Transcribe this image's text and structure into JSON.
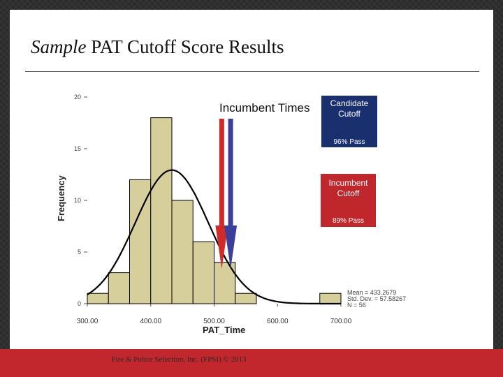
{
  "slide": {
    "title_italic": "Sample",
    "title_rest": "PAT Cutoff Score Results",
    "footer": "Fire & Police Selection, Inc. (FPSI) © 2013"
  },
  "callouts": {
    "candidate": {
      "line1": "Candidate",
      "line2": "Cutoff",
      "pass": "96% Pass",
      "color": "#1a2f6e"
    },
    "incumbent": {
      "line1": "Incumbent",
      "line2": "Cutoff",
      "pass": "89% Pass",
      "color": "#c0272d"
    }
  },
  "chart_data": {
    "type": "bar",
    "annotation_title": "Incumbent Times",
    "xlabel": "PAT_Time",
    "ylabel": "Frequency",
    "bin_width": 33.33,
    "bins": [
      {
        "x0": 300.0,
        "value": 1
      },
      {
        "x0": 333.33,
        "value": 3
      },
      {
        "x0": 366.67,
        "value": 12
      },
      {
        "x0": 400.0,
        "value": 18
      },
      {
        "x0": 433.33,
        "value": 10
      },
      {
        "x0": 466.67,
        "value": 6
      },
      {
        "x0": 500.0,
        "value": 4
      },
      {
        "x0": 533.33,
        "value": 1
      },
      {
        "x0": 566.67,
        "value": 0
      },
      {
        "x0": 600.0,
        "value": 0
      },
      {
        "x0": 633.33,
        "value": 0
      },
      {
        "x0": 666.67,
        "value": 1
      }
    ],
    "xlim": [
      300,
      700
    ],
    "ylim": [
      0,
      20
    ],
    "xticks": [
      300,
      400,
      500,
      600,
      700
    ],
    "xtick_labels": [
      "300.00",
      "400.00",
      "500.00",
      "600.00",
      "700.00"
    ],
    "yticks": [
      0,
      5,
      10,
      15,
      20
    ],
    "ytick_labels": [
      "0",
      "5",
      "10",
      "15",
      "20"
    ],
    "bar_color": "#d6cf9c",
    "normal_curve": {
      "mean": 433.2679,
      "sd": 57.58267,
      "n": 56
    },
    "stats_text": [
      "Mean = 433.2679",
      "Std. Dev. = 57.58267",
      "N = 56"
    ],
    "cutoff_lines": [
      {
        "label": "Incumbent Cutoff",
        "x": 512,
        "color": "#d12a2a"
      },
      {
        "label": "Candidate Cutoff",
        "x": 526,
        "color": "#3c3f9a"
      }
    ]
  }
}
